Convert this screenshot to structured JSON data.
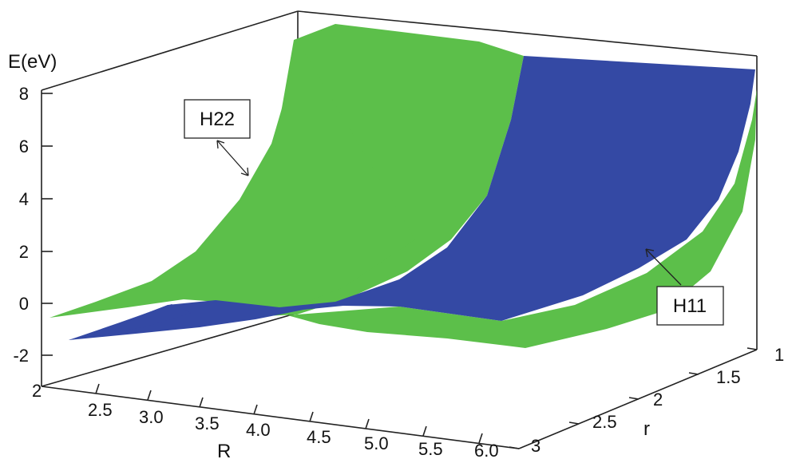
{
  "chart_data": {
    "type": "surface",
    "zlabel": "E(eV)",
    "xlabel": "R",
    "ylabel": "r",
    "z_ticks": [
      "8",
      "6",
      "4",
      "2",
      "0",
      "-2"
    ],
    "R_ticks": [
      "2",
      "2.5",
      "3.0",
      "3.5",
      "4.0",
      "4.5",
      "5.0",
      "5.5",
      "6.0"
    ],
    "r_ticks": [
      "1",
      "1.5",
      "2",
      "2.5",
      "3"
    ],
    "zlim": [
      -2,
      8
    ],
    "Rlim": [
      2.0,
      6.0
    ],
    "rlim": [
      1,
      3
    ],
    "series": [
      {
        "name": "H22",
        "color": "#5cbf4a"
      },
      {
        "name": "H11",
        "color": "#3449a4"
      }
    ],
    "annotations": [
      {
        "text": "H22",
        "target_series": "H22"
      },
      {
        "text": "H11",
        "target_series": "H11"
      }
    ]
  }
}
